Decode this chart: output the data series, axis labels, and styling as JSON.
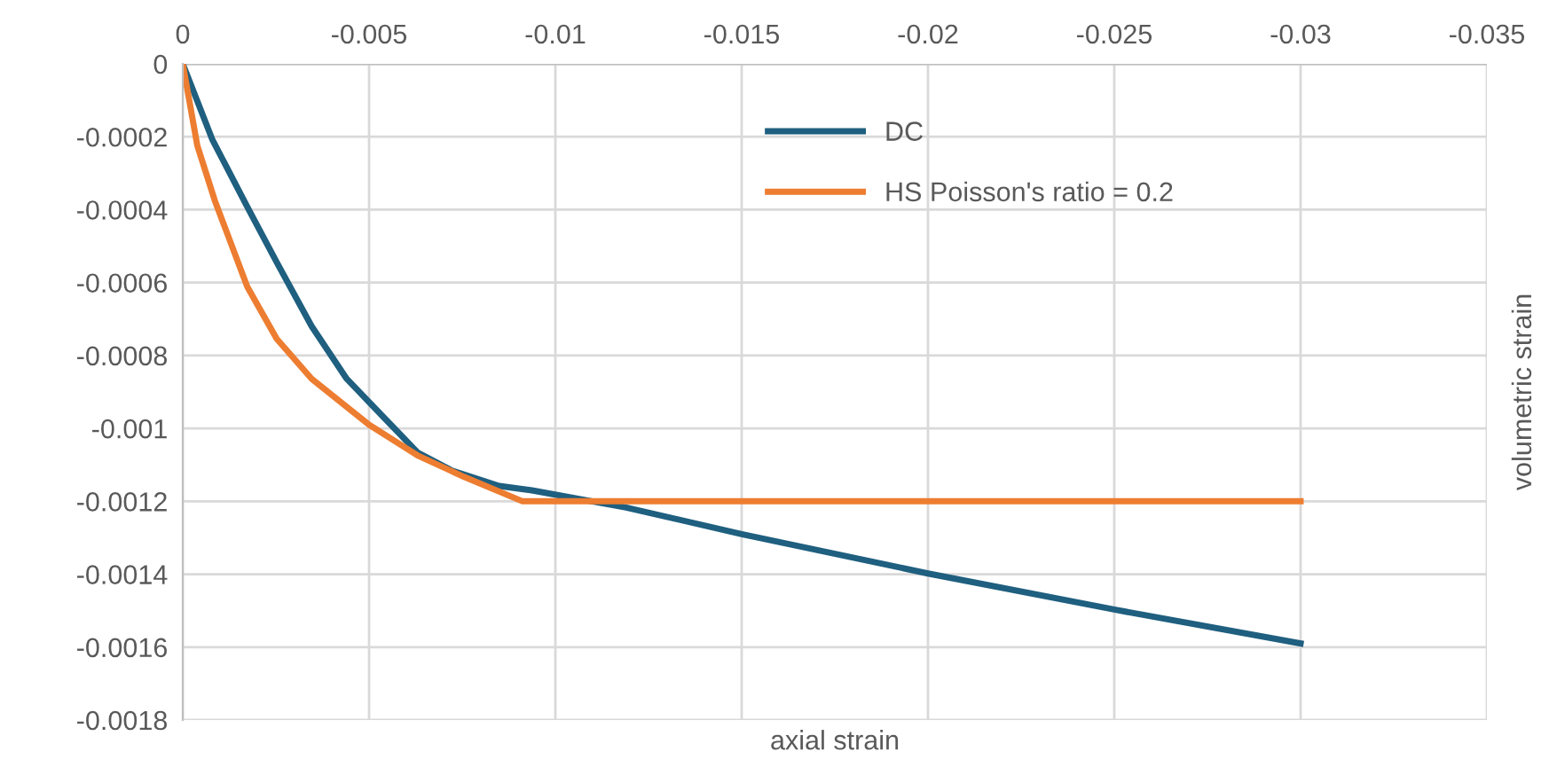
{
  "chart_data": {
    "type": "line",
    "xlabel": "axial strain",
    "ylabel": "volumetric strain",
    "xlim": [
      0,
      -0.035
    ],
    "xticks": [
      0,
      -0.005,
      -0.01,
      -0.015,
      -0.02,
      -0.025,
      -0.03,
      -0.035
    ],
    "ylim": [
      -0.0018,
      0
    ],
    "yticks": [
      0,
      -0.0002,
      -0.0004,
      -0.0006,
      -0.0008,
      -0.001,
      -0.0012,
      -0.0014,
      -0.0016,
      -0.0018
    ],
    "grid": true,
    "legend": "top",
    "marker": "none",
    "line_style": "solid",
    "series": [
      {
        "name": "DC",
        "color": "#1f5f7f",
        "x": [
          0,
          -0.00079,
          -0.00173,
          -0.00252,
          -0.00346,
          -0.0044,
          -0.00535,
          -0.0063,
          -0.00723,
          -0.00849,
          -0.00937,
          -0.0119,
          -0.015,
          -0.02,
          -0.025,
          -0.03
        ],
        "values": [
          0,
          -0.000207,
          -0.000392,
          -0.000544,
          -0.00072,
          -0.000864,
          -0.000965,
          -0.001066,
          -0.001116,
          -0.001158,
          -0.00117,
          -0.001217,
          -0.00129,
          -0.001398,
          -0.001497,
          -0.00159
        ]
      },
      {
        "name": "HS Poisson's ratio = 0.2",
        "color": "#ed7d31",
        "x": [
          0,
          -0.00039,
          -0.00086,
          -0.00173,
          -0.00252,
          -0.00346,
          -0.005,
          -0.0063,
          -0.00755,
          -0.00912,
          -0.01,
          -0.03
        ],
        "values": [
          0,
          -0.000224,
          -0.000375,
          -0.000611,
          -0.000754,
          -0.000864,
          -0.00099,
          -0.001074,
          -0.001133,
          -0.0012,
          -0.0012,
          -0.0012
        ]
      }
    ]
  }
}
